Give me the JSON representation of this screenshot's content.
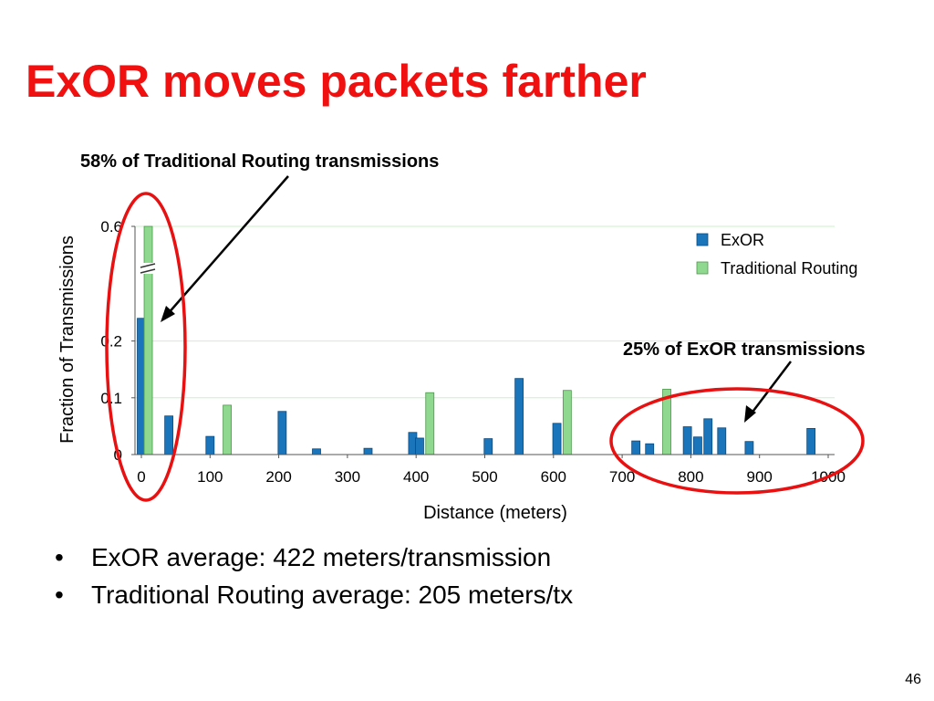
{
  "slide": {
    "title": "ExOR moves packets farther",
    "page_number": "46"
  },
  "bullets": [
    "ExOR average: 422 meters/transmission",
    "Traditional Routing average: 205 meters/tx"
  ],
  "colors": {
    "title": "#f01010",
    "exor": "#1a75bb",
    "traditional": "#8fd88f",
    "gridline": "#c8f0c8",
    "highlight_ellipse": "#e81010"
  },
  "chart_data": {
    "type": "bar",
    "xlabel": "Distance (meters)",
    "ylabel": "Fraction of Transmissions",
    "xlim": [
      0,
      1000
    ],
    "x_ticks": [
      "0",
      "100",
      "200",
      "300",
      "400",
      "500",
      "600",
      "700",
      "800",
      "900",
      "1000"
    ],
    "y_ticks": [
      {
        "label": "0",
        "value": 0
      },
      {
        "label": "0.1",
        "value": 0.1
      },
      {
        "label": "0.2",
        "value": 0.2
      },
      {
        "label": "0.6",
        "value": 0.6
      }
    ],
    "y_axis_break": true,
    "grid": true,
    "legend_position": "top-right",
    "series": [
      {
        "name": "ExOR",
        "points": [
          {
            "x": 0,
            "y": 0.24
          },
          {
            "x": 40,
            "y": 0.068
          },
          {
            "x": 100,
            "y": 0.032
          },
          {
            "x": 205,
            "y": 0.076
          },
          {
            "x": 255,
            "y": 0.01
          },
          {
            "x": 330,
            "y": 0.011
          },
          {
            "x": 395,
            "y": 0.039
          },
          {
            "x": 405,
            "y": 0.029
          },
          {
            "x": 505,
            "y": 0.028
          },
          {
            "x": 550,
            "y": 0.134
          },
          {
            "x": 605,
            "y": 0.055
          },
          {
            "x": 720,
            "y": 0.024
          },
          {
            "x": 740,
            "y": 0.019
          },
          {
            "x": 795,
            "y": 0.049
          },
          {
            "x": 810,
            "y": 0.031
          },
          {
            "x": 825,
            "y": 0.063
          },
          {
            "x": 845,
            "y": 0.047
          },
          {
            "x": 885,
            "y": 0.023
          },
          {
            "x": 975,
            "y": 0.046
          }
        ]
      },
      {
        "name": "Traditional Routing",
        "points": [
          {
            "x": 10,
            "y": 0.6
          },
          {
            "x": 125,
            "y": 0.087
          },
          {
            "x": 420,
            "y": 0.109
          },
          {
            "x": 620,
            "y": 0.113
          },
          {
            "x": 765,
            "y": 0.115
          }
        ]
      }
    ],
    "annotations": [
      "58% of Traditional Routing transmissions",
      "25% of ExOR transmissions"
    ]
  }
}
